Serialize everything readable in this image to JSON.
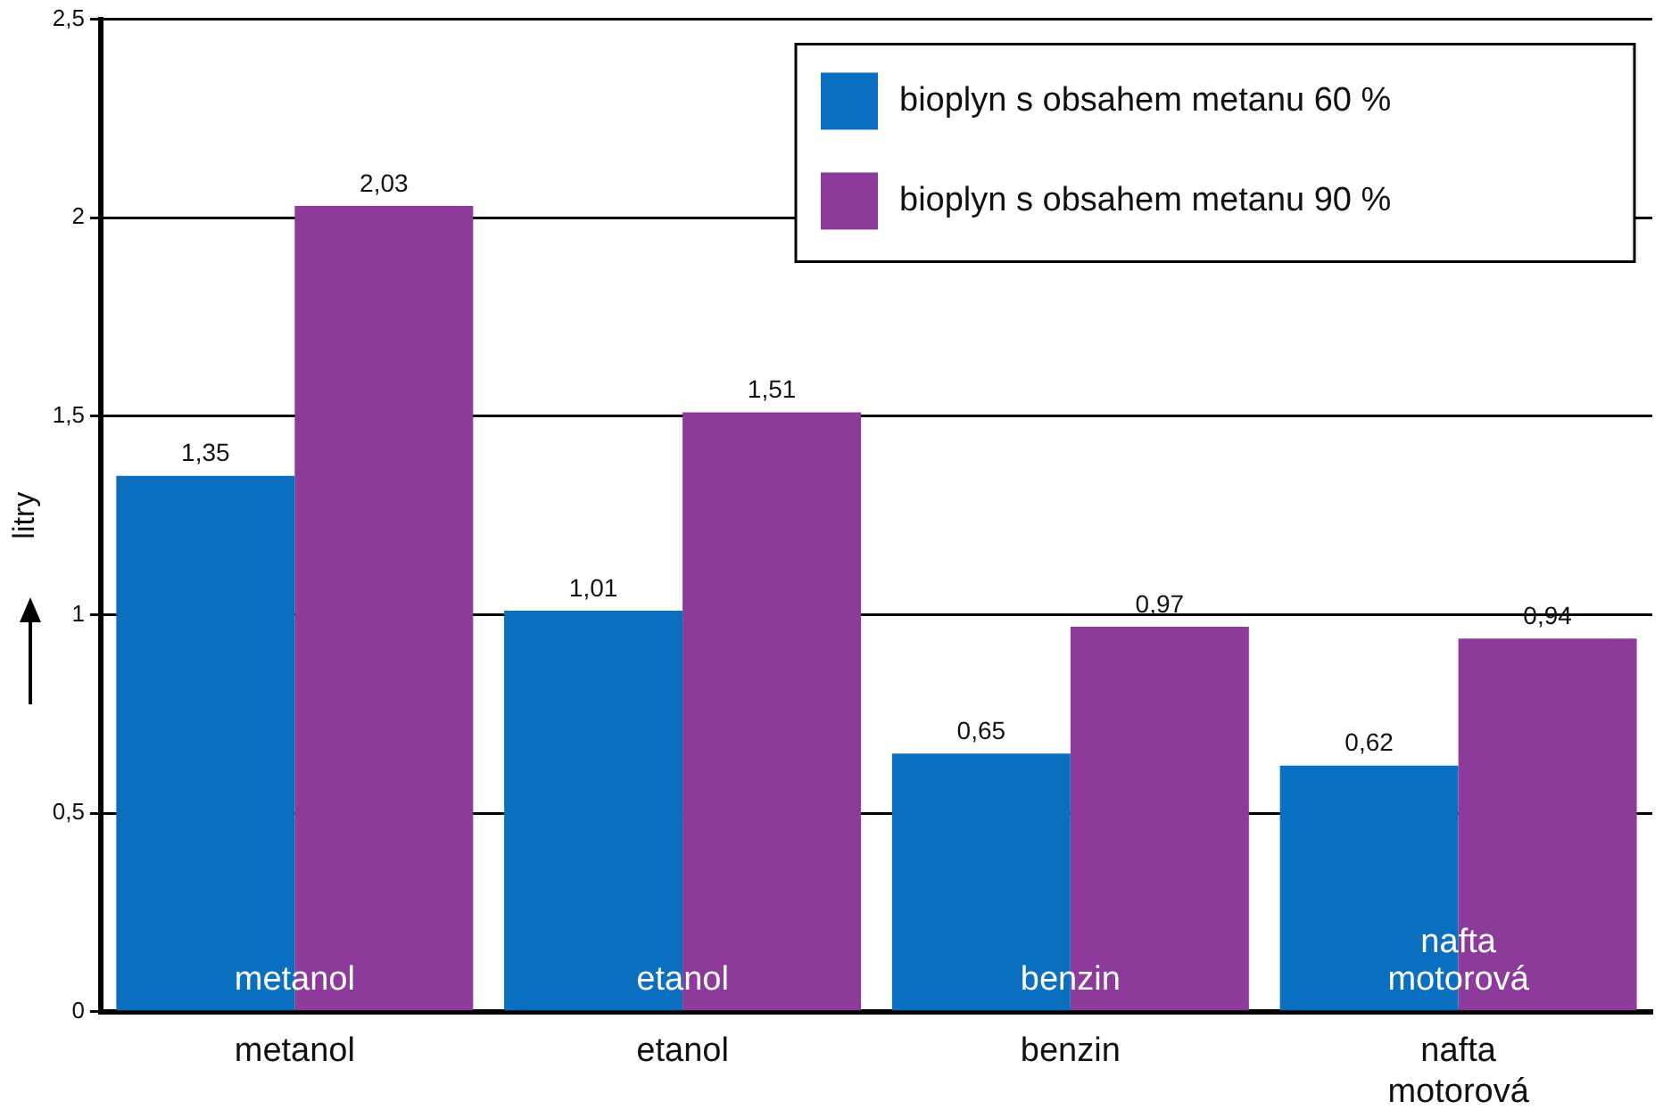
{
  "chart_data": {
    "type": "bar",
    "ylabel": "litry",
    "categories": [
      "metanol",
      "etanol",
      "benzin",
      "nafta motorová"
    ],
    "series": [
      {
        "name": "bioplyn s obsahem metanu 60 %",
        "color": "#0b6fbf",
        "values": [
          1.35,
          1.01,
          0.65,
          0.62
        ],
        "value_labels": [
          "1,35",
          "1,01",
          "0,65",
          "0,62"
        ]
      },
      {
        "name": "bioplyn s obsahem metanu 90 %",
        "color": "#8c3b9b",
        "values": [
          2.03,
          1.51,
          0.97,
          0.94
        ],
        "value_labels": [
          "2,03",
          "1,51",
          "0,97",
          "0,94"
        ]
      }
    ],
    "ylim": [
      0,
      2.5
    ],
    "yticks": [
      0,
      {
        "value": 0.5,
        "label": "0,5"
      },
      1,
      {
        "value": 1.5,
        "label": "1,5"
      },
      2,
      {
        "value": 2.5,
        "label": "2,5"
      }
    ],
    "grid": "y",
    "legend": "top right",
    "annotations": [
      {
        "text": "metanol",
        "x": "metanol",
        "y": 0.1
      },
      {
        "text": "etanol",
        "x": "etanol",
        "y": 0.1
      },
      {
        "text": "benzin",
        "x": "benzin",
        "y": 0.1
      },
      {
        "text": "nafta motorová",
        "x": "nafta motorová",
        "y": 0.1
      }
    ]
  }
}
